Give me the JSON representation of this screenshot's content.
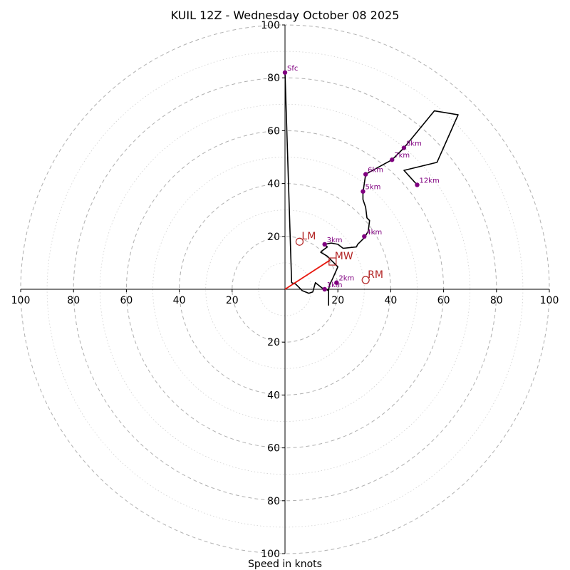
{
  "chart_data": {
    "type": "hodograph",
    "title": "KUIL 12Z - Wednesday October 08 2025",
    "xlabel": "Speed in knots",
    "range": [
      -100,
      100
    ],
    "ring_step_major": 20,
    "ring_step_minor": 10,
    "x_tick_labels": [
      "100",
      "80",
      "60",
      "40",
      "20",
      "20",
      "40",
      "60",
      "80",
      "100"
    ],
    "x_tick_values": [
      -100,
      -80,
      -60,
      -40,
      -20,
      20,
      40,
      60,
      80,
      100
    ],
    "y_tick_labels": [
      "100",
      "80",
      "60",
      "40",
      "20",
      "20",
      "40",
      "60",
      "80",
      "100"
    ],
    "y_tick_values": [
      100,
      80,
      60,
      40,
      20,
      -20,
      -40,
      -60,
      -80,
      -100
    ],
    "trace": [
      [
        0,
        82
      ],
      [
        2.5,
        2.5
      ],
      [
        4,
        2
      ],
      [
        5.5,
        0.5
      ],
      [
        6.5,
        -0.5
      ],
      [
        9,
        -1.5
      ],
      [
        10.5,
        -1
      ],
      [
        11.5,
        2.5
      ],
      [
        14,
        0.5
      ],
      [
        15.5,
        0
      ],
      [
        16.5,
        -0.5
      ],
      [
        16.5,
        -6
      ],
      [
        16.5,
        0
      ],
      [
        17,
        2
      ],
      [
        18,
        4
      ],
      [
        20,
        8.5
      ],
      [
        17.5,
        11
      ],
      [
        16,
        12.5
      ],
      [
        13.5,
        14
      ],
      [
        14,
        14.5
      ],
      [
        16,
        16
      ],
      [
        15,
        17
      ],
      [
        17.5,
        17.5
      ],
      [
        20,
        17
      ],
      [
        22,
        15.5
      ],
      [
        27,
        16
      ],
      [
        27.5,
        17
      ],
      [
        30,
        19.5
      ],
      [
        31.5,
        22
      ],
      [
        32,
        26
      ],
      [
        31,
        27
      ],
      [
        30.5,
        31
      ],
      [
        29.5,
        34
      ],
      [
        29.5,
        36.5
      ],
      [
        30,
        40
      ],
      [
        30.5,
        43.5
      ],
      [
        35,
        46
      ],
      [
        40.5,
        49
      ],
      [
        45,
        53.5
      ],
      [
        52,
        62
      ],
      [
        56.5,
        67.5
      ],
      [
        65.5,
        66
      ],
      [
        57.5,
        48
      ],
      [
        45,
        45
      ],
      [
        50,
        39.5
      ]
    ],
    "height_markers": [
      {
        "label": "Sfc",
        "u": 0,
        "v": 82
      },
      {
        "label": "1km",
        "u": 15,
        "v": 0
      },
      {
        "label": "2km",
        "u": 19.5,
        "v": 2.5
      },
      {
        "label": "3km",
        "u": 15,
        "v": 17
      },
      {
        "label": "4km",
        "u": 30,
        "v": 20
      },
      {
        "label": "5km",
        "u": 29.5,
        "v": 37
      },
      {
        "label": "6km",
        "u": 30.5,
        "v": 43.5
      },
      {
        "label": "7km",
        "u": 40.5,
        "v": 49
      },
      {
        "label": "8km",
        "u": 45,
        "v": 53.5
      },
      {
        "label": "12km",
        "u": 50,
        "v": 39.5
      }
    ],
    "motion_points": [
      {
        "label": "LM",
        "u": 5.5,
        "v": 18,
        "marker": "circle"
      },
      {
        "label": "MW",
        "u": 18,
        "v": 10.5,
        "marker": "square"
      },
      {
        "label": "RM",
        "u": 30.5,
        "v": 3.5,
        "marker": "circle"
      }
    ],
    "shear_vector": {
      "u": 17,
      "v": 11
    },
    "colors": {
      "trace": "#000000",
      "markers": "#800080",
      "motion": "#b22222",
      "shear": "#e8190f",
      "grid": "#b0b0b0"
    }
  }
}
